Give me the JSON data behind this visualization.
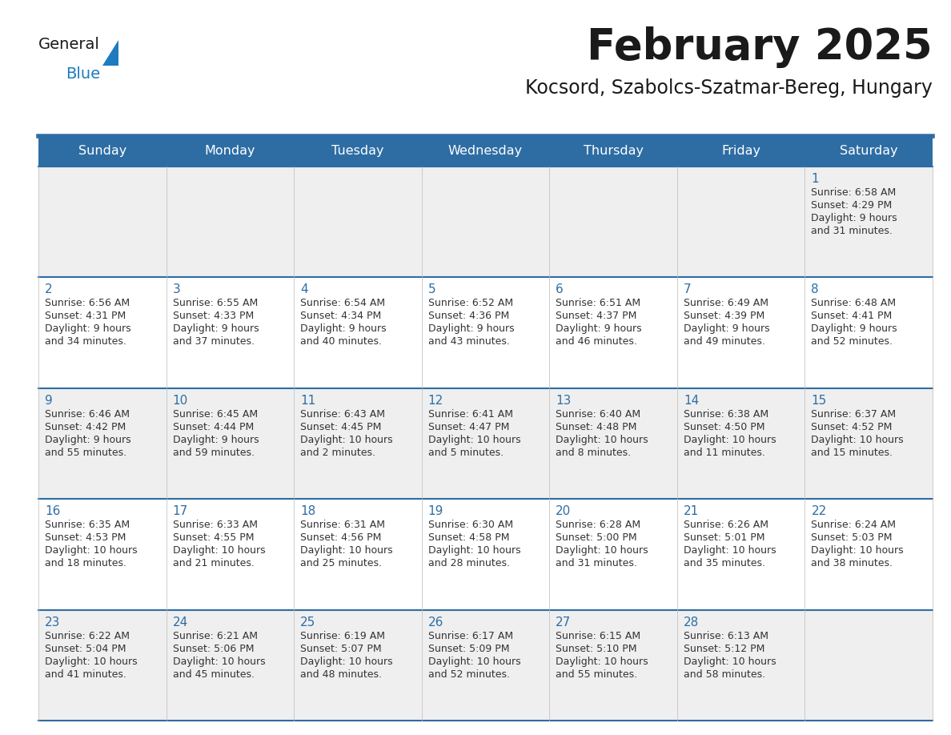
{
  "title": "February 2025",
  "subtitle": "Kocsord, Szabolcs-Szatmar-Bereg, Hungary",
  "header_color": "#2E6DA4",
  "header_text_color": "#FFFFFF",
  "day_names": [
    "Sunday",
    "Monday",
    "Tuesday",
    "Wednesday",
    "Thursday",
    "Friday",
    "Saturday"
  ],
  "background_color": "#FFFFFF",
  "cell_bg_even": "#EFEFEF",
  "cell_bg_odd": "#FFFFFF",
  "separator_color": "#2E6DA4",
  "text_color": "#333333",
  "date_color": "#2E6DA4",
  "logo_general_color": "#1A1A1A",
  "logo_blue_color": "#1E7BBF",
  "days": [
    {
      "date": 1,
      "col": 6,
      "row": 0,
      "sunrise": "6:58 AM",
      "sunset": "4:29 PM",
      "daylight_h": "9 hours",
      "daylight_m": "31 minutes."
    },
    {
      "date": 2,
      "col": 0,
      "row": 1,
      "sunrise": "6:56 AM",
      "sunset": "4:31 PM",
      "daylight_h": "9 hours",
      "daylight_m": "34 minutes."
    },
    {
      "date": 3,
      "col": 1,
      "row": 1,
      "sunrise": "6:55 AM",
      "sunset": "4:33 PM",
      "daylight_h": "9 hours",
      "daylight_m": "37 minutes."
    },
    {
      "date": 4,
      "col": 2,
      "row": 1,
      "sunrise": "6:54 AM",
      "sunset": "4:34 PM",
      "daylight_h": "9 hours",
      "daylight_m": "40 minutes."
    },
    {
      "date": 5,
      "col": 3,
      "row": 1,
      "sunrise": "6:52 AM",
      "sunset": "4:36 PM",
      "daylight_h": "9 hours",
      "daylight_m": "43 minutes."
    },
    {
      "date": 6,
      "col": 4,
      "row": 1,
      "sunrise": "6:51 AM",
      "sunset": "4:37 PM",
      "daylight_h": "9 hours",
      "daylight_m": "46 minutes."
    },
    {
      "date": 7,
      "col": 5,
      "row": 1,
      "sunrise": "6:49 AM",
      "sunset": "4:39 PM",
      "daylight_h": "9 hours",
      "daylight_m": "49 minutes."
    },
    {
      "date": 8,
      "col": 6,
      "row": 1,
      "sunrise": "6:48 AM",
      "sunset": "4:41 PM",
      "daylight_h": "9 hours",
      "daylight_m": "52 minutes."
    },
    {
      "date": 9,
      "col": 0,
      "row": 2,
      "sunrise": "6:46 AM",
      "sunset": "4:42 PM",
      "daylight_h": "9 hours",
      "daylight_m": "55 minutes."
    },
    {
      "date": 10,
      "col": 1,
      "row": 2,
      "sunrise": "6:45 AM",
      "sunset": "4:44 PM",
      "daylight_h": "9 hours",
      "daylight_m": "59 minutes."
    },
    {
      "date": 11,
      "col": 2,
      "row": 2,
      "sunrise": "6:43 AM",
      "sunset": "4:45 PM",
      "daylight_h": "10 hours",
      "daylight_m": "2 minutes."
    },
    {
      "date": 12,
      "col": 3,
      "row": 2,
      "sunrise": "6:41 AM",
      "sunset": "4:47 PM",
      "daylight_h": "10 hours",
      "daylight_m": "5 minutes."
    },
    {
      "date": 13,
      "col": 4,
      "row": 2,
      "sunrise": "6:40 AM",
      "sunset": "4:48 PM",
      "daylight_h": "10 hours",
      "daylight_m": "8 minutes."
    },
    {
      "date": 14,
      "col": 5,
      "row": 2,
      "sunrise": "6:38 AM",
      "sunset": "4:50 PM",
      "daylight_h": "10 hours",
      "daylight_m": "11 minutes."
    },
    {
      "date": 15,
      "col": 6,
      "row": 2,
      "sunrise": "6:37 AM",
      "sunset": "4:52 PM",
      "daylight_h": "10 hours",
      "daylight_m": "15 minutes."
    },
    {
      "date": 16,
      "col": 0,
      "row": 3,
      "sunrise": "6:35 AM",
      "sunset": "4:53 PM",
      "daylight_h": "10 hours",
      "daylight_m": "18 minutes."
    },
    {
      "date": 17,
      "col": 1,
      "row": 3,
      "sunrise": "6:33 AM",
      "sunset": "4:55 PM",
      "daylight_h": "10 hours",
      "daylight_m": "21 minutes."
    },
    {
      "date": 18,
      "col": 2,
      "row": 3,
      "sunrise": "6:31 AM",
      "sunset": "4:56 PM",
      "daylight_h": "10 hours",
      "daylight_m": "25 minutes."
    },
    {
      "date": 19,
      "col": 3,
      "row": 3,
      "sunrise": "6:30 AM",
      "sunset": "4:58 PM",
      "daylight_h": "10 hours",
      "daylight_m": "28 minutes."
    },
    {
      "date": 20,
      "col": 4,
      "row": 3,
      "sunrise": "6:28 AM",
      "sunset": "5:00 PM",
      "daylight_h": "10 hours",
      "daylight_m": "31 minutes."
    },
    {
      "date": 21,
      "col": 5,
      "row": 3,
      "sunrise": "6:26 AM",
      "sunset": "5:01 PM",
      "daylight_h": "10 hours",
      "daylight_m": "35 minutes."
    },
    {
      "date": 22,
      "col": 6,
      "row": 3,
      "sunrise": "6:24 AM",
      "sunset": "5:03 PM",
      "daylight_h": "10 hours",
      "daylight_m": "38 minutes."
    },
    {
      "date": 23,
      "col": 0,
      "row": 4,
      "sunrise": "6:22 AM",
      "sunset": "5:04 PM",
      "daylight_h": "10 hours",
      "daylight_m": "41 minutes."
    },
    {
      "date": 24,
      "col": 1,
      "row": 4,
      "sunrise": "6:21 AM",
      "sunset": "5:06 PM",
      "daylight_h": "10 hours",
      "daylight_m": "45 minutes."
    },
    {
      "date": 25,
      "col": 2,
      "row": 4,
      "sunrise": "6:19 AM",
      "sunset": "5:07 PM",
      "daylight_h": "10 hours",
      "daylight_m": "48 minutes."
    },
    {
      "date": 26,
      "col": 3,
      "row": 4,
      "sunrise": "6:17 AM",
      "sunset": "5:09 PM",
      "daylight_h": "10 hours",
      "daylight_m": "52 minutes."
    },
    {
      "date": 27,
      "col": 4,
      "row": 4,
      "sunrise": "6:15 AM",
      "sunset": "5:10 PM",
      "daylight_h": "10 hours",
      "daylight_m": "55 minutes."
    },
    {
      "date": 28,
      "col": 5,
      "row": 4,
      "sunrise": "6:13 AM",
      "sunset": "5:12 PM",
      "daylight_h": "10 hours",
      "daylight_m": "58 minutes."
    }
  ]
}
